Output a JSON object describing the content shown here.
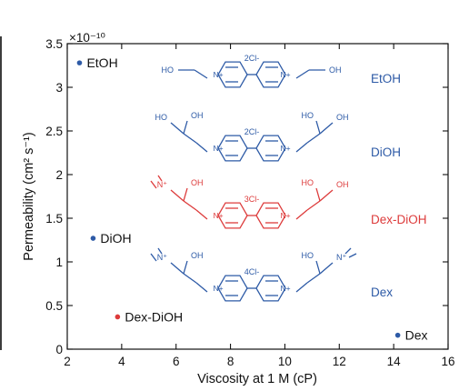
{
  "colors": {
    "blue": "#2d5aa6",
    "red": "#dd3b3b",
    "axis": "#111111",
    "left_edge": "#3d3d3d"
  },
  "chart_data": {
    "type": "scatter",
    "title": "",
    "xlabel": "Viscosity at 1 M (cP)",
    "ylabel": "Permeability (cm² s⁻¹)",
    "y_multiplier": "×10⁻¹⁰",
    "xlim": [
      2,
      16
    ],
    "ylim": [
      0,
      3.5
    ],
    "x_ticks": [
      "2",
      "4",
      "6",
      "8",
      "10",
      "12",
      "14",
      "16"
    ],
    "y_ticks": [
      "0",
      "0.5",
      "1",
      "1.5",
      "2",
      "2.5",
      "3",
      "3.5"
    ],
    "grid": false,
    "points": [
      {
        "label": "EtOH",
        "x": 2.45,
        "y": 3.28,
        "color": "#2d5aa6"
      },
      {
        "label": "DiOH",
        "x": 2.95,
        "y": 1.27,
        "color": "#2d5aa6"
      },
      {
        "label": "Dex-DiOH",
        "x": 3.85,
        "y": 0.37,
        "color": "#dd3b3b"
      },
      {
        "label": "Dex",
        "x": 14.15,
        "y": 0.16,
        "color": "#2d5aa6"
      }
    ]
  },
  "structures": [
    {
      "name": "EtOH",
      "color": "#2d5aa6",
      "counterion": "2Cl-",
      "left_group": "HO",
      "right_group": "OH",
      "left_sub": "",
      "right_sub": ""
    },
    {
      "name": "DiOH",
      "color": "#2d5aa6",
      "counterion": "2Cl-",
      "left_group": "HO",
      "right_group": "OH",
      "left_sub": "OH",
      "right_sub": "HO"
    },
    {
      "name": "Dex-DiOH",
      "color": "#dd3b3b",
      "counterion": "3Cl-",
      "left_group": "N⁺",
      "right_group": "OH",
      "left_sub": "OH",
      "right_sub": "HO"
    },
    {
      "name": "Dex",
      "color": "#2d5aa6",
      "counterion": "4Cl-",
      "left_group": "N⁺",
      "right_group": "N⁺",
      "left_sub": "OH",
      "right_sub": "HO"
    }
  ],
  "ring_n_label": "N",
  "ring_n_plus": "+"
}
